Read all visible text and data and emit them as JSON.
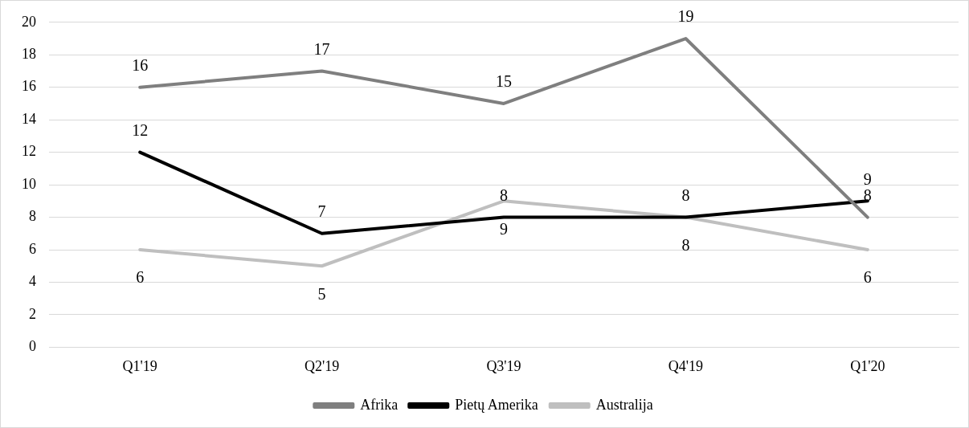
{
  "chart_data": {
    "type": "line",
    "categories": [
      "Q1'19",
      "Q2'19",
      "Q3'19",
      "Q4'19",
      "Q1'20"
    ],
    "series": [
      {
        "name": "Afrika",
        "color": "#7f7f7f",
        "values": [
          16,
          17,
          15,
          19,
          8
        ]
      },
      {
        "name": "Pietų Amerika",
        "color": "#000000",
        "values": [
          12,
          7,
          8,
          8,
          9
        ]
      },
      {
        "name": "Australija",
        "color": "#bfbfbf",
        "values": [
          6,
          5,
          9,
          8,
          6
        ]
      }
    ],
    "ylim": [
      0,
      20
    ],
    "yticks": [
      0,
      2,
      4,
      6,
      8,
      10,
      12,
      14,
      16,
      18,
      20
    ],
    "grid": "y",
    "legend": "bottom",
    "marker": "none",
    "line_style": "solid",
    "data_labels": true
  }
}
